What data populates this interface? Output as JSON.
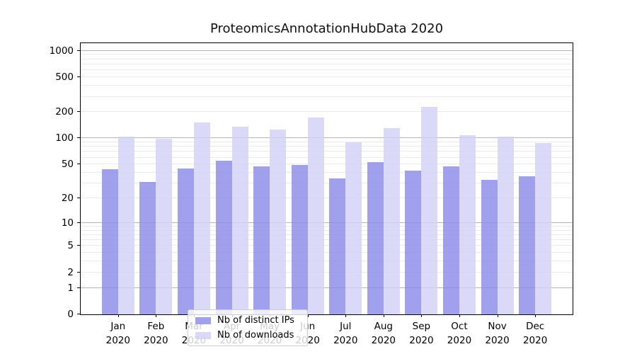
{
  "chart_data": {
    "type": "bar",
    "title": "ProteomicsAnnotationHubData 2020",
    "categories": [
      "Jan",
      "Feb",
      "Mar",
      "Apr",
      "May",
      "Jun",
      "Jul",
      "Aug",
      "Sep",
      "Oct",
      "Nov",
      "Dec"
    ],
    "category_year": "2020",
    "series": [
      {
        "name": "Nb of distinct IPs",
        "color": "#8b8be9",
        "values": [
          44,
          31,
          45,
          55,
          47,
          49,
          34,
          53,
          42,
          47,
          33,
          36
        ]
      },
      {
        "name": "Nb of downloads",
        "color": "#d2d2f6",
        "values": [
          104,
          99,
          152,
          135,
          127,
          173,
          90,
          130,
          231,
          108,
          104,
          88
        ]
      }
    ],
    "yscale": "log1p",
    "ylim": [
      0,
      1222
    ],
    "y_ticks": [
      0,
      1,
      2,
      5,
      10,
      20,
      50,
      100,
      200,
      500,
      1000
    ],
    "y_tick_labels": [
      "0",
      "1",
      "2",
      "5",
      "10",
      "20",
      "50",
      "100",
      "200",
      "500",
      "1000"
    ],
    "major_gridlines": [
      1,
      10,
      100,
      1000
    ],
    "minor_gridlines": [
      2,
      3,
      4,
      5,
      6,
      7,
      8,
      9,
      20,
      30,
      40,
      50,
      60,
      70,
      80,
      90,
      200,
      300,
      400,
      500,
      600,
      700,
      800,
      900
    ],
    "legend_position": "lower-center",
    "grid": "on"
  },
  "colors": {
    "bar_distinct_ips": "#8b8be9",
    "bar_downloads": "#d2d2f6",
    "major_grid": "#b4b4b4",
    "minor_grid": "#ebebeb",
    "axis": "#000000",
    "legend_border": "#cccccc",
    "text": "#000000"
  }
}
